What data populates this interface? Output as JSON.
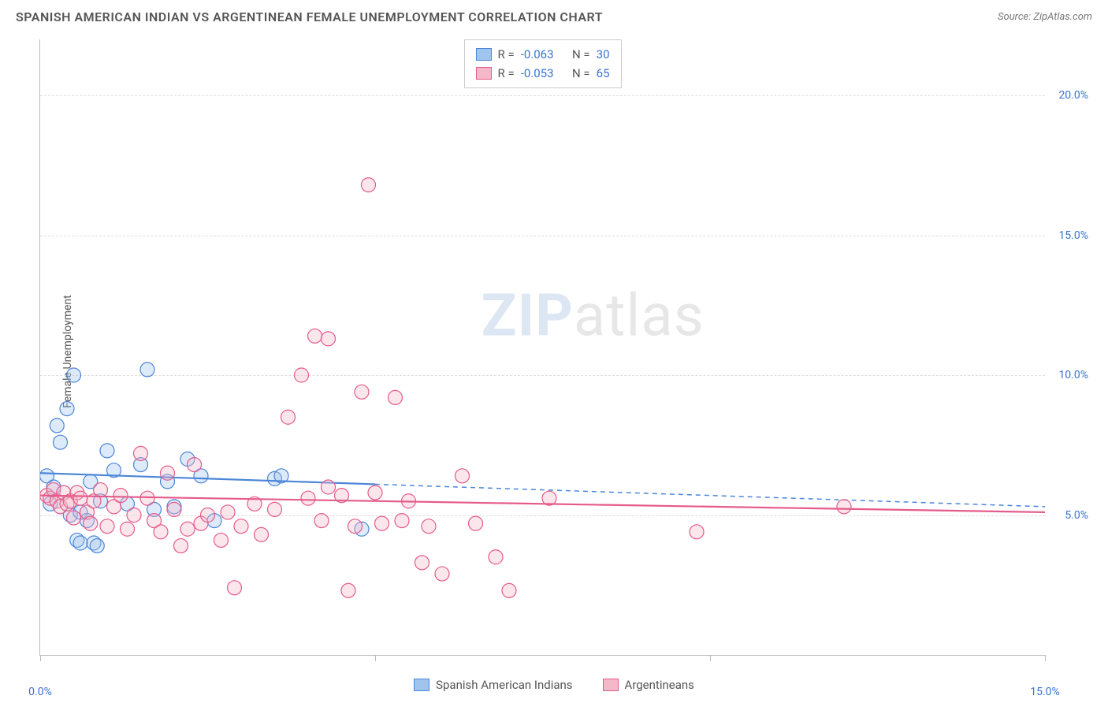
{
  "title": "SPANISH AMERICAN INDIAN VS ARGENTINEAN FEMALE UNEMPLOYMENT CORRELATION CHART",
  "source_label": "Source: ZipAtlas.com",
  "y_axis_label": "Female Unemployment",
  "watermark_a": "ZIP",
  "watermark_b": "atlas",
  "chart": {
    "type": "scatter",
    "background_color": "#ffffff",
    "grid_color": "#dddddd",
    "axis_color": "#bbbbbb",
    "tick_label_color": "#3973d4",
    "xlim": [
      0,
      15
    ],
    "ylim": [
      0,
      22
    ],
    "y_ticks": [
      {
        "v": 5,
        "label": "5.0%"
      },
      {
        "v": 10,
        "label": "10.0%"
      },
      {
        "v": 15,
        "label": "15.0%"
      },
      {
        "v": 20,
        "label": "20.0%"
      }
    ],
    "x_ticks": [
      0,
      5,
      10,
      15
    ],
    "x_tick_labels": {
      "0": "0.0%",
      "15": "15.0%"
    },
    "marker_radius": 9,
    "marker_fill_opacity": 0.35,
    "marker_stroke_width": 1.2,
    "trend_line_width": 2.2,
    "series": [
      {
        "id": "spanish_american_indians",
        "label": "Spanish American Indians",
        "fill": "#9fc4ee",
        "stroke": "#4b86d8",
        "r_value": "-0.063",
        "n_value": "30",
        "trend": {
          "x1": 0,
          "y1": 6.5,
          "x2": 5,
          "y2": 6.1,
          "dash_x2": 15,
          "dash_y2": 5.3
        },
        "points": [
          [
            0.1,
            6.4
          ],
          [
            0.15,
            5.4
          ],
          [
            0.2,
            6.0
          ],
          [
            0.25,
            8.2
          ],
          [
            0.3,
            7.6
          ],
          [
            0.4,
            8.8
          ],
          [
            0.45,
            5.0
          ],
          [
            0.5,
            10.0
          ],
          [
            0.55,
            4.1
          ],
          [
            0.6,
            4.0
          ],
          [
            0.6,
            5.1
          ],
          [
            0.7,
            4.8
          ],
          [
            0.75,
            6.2
          ],
          [
            0.8,
            4.0
          ],
          [
            0.85,
            3.9
          ],
          [
            0.9,
            5.5
          ],
          [
            1.0,
            7.3
          ],
          [
            1.1,
            6.6
          ],
          [
            1.3,
            5.4
          ],
          [
            1.5,
            6.8
          ],
          [
            1.6,
            10.2
          ],
          [
            1.7,
            5.2
          ],
          [
            1.9,
            6.2
          ],
          [
            2.0,
            5.3
          ],
          [
            2.2,
            7.0
          ],
          [
            2.4,
            6.4
          ],
          [
            2.6,
            4.8
          ],
          [
            3.5,
            6.3
          ],
          [
            3.6,
            6.4
          ],
          [
            4.8,
            4.5
          ]
        ]
      },
      {
        "id": "argentineans",
        "label": "Argentineans",
        "fill": "#f4b8c9",
        "stroke": "#e55b8b",
        "r_value": "-0.053",
        "n_value": "65",
        "trend": {
          "x1": 0,
          "y1": 5.7,
          "x2": 15,
          "y2": 5.1
        },
        "points": [
          [
            0.1,
            5.7
          ],
          [
            0.15,
            5.6
          ],
          [
            0.2,
            5.9
          ],
          [
            0.25,
            5.5
          ],
          [
            0.3,
            5.3
          ],
          [
            0.35,
            5.8
          ],
          [
            0.4,
            5.4
          ],
          [
            0.45,
            5.5
          ],
          [
            0.5,
            4.9
          ],
          [
            0.55,
            5.8
          ],
          [
            0.6,
            5.6
          ],
          [
            0.7,
            5.1
          ],
          [
            0.75,
            4.7
          ],
          [
            0.8,
            5.5
          ],
          [
            0.9,
            5.9
          ],
          [
            1.0,
            4.6
          ],
          [
            1.1,
            5.3
          ],
          [
            1.2,
            5.7
          ],
          [
            1.3,
            4.5
          ],
          [
            1.4,
            5.0
          ],
          [
            1.5,
            7.2
          ],
          [
            1.6,
            5.6
          ],
          [
            1.7,
            4.8
          ],
          [
            1.8,
            4.4
          ],
          [
            1.9,
            6.5
          ],
          [
            2.0,
            5.2
          ],
          [
            2.1,
            3.9
          ],
          [
            2.2,
            4.5
          ],
          [
            2.3,
            6.8
          ],
          [
            2.4,
            4.7
          ],
          [
            2.5,
            5.0
          ],
          [
            2.7,
            4.1
          ],
          [
            2.8,
            5.1
          ],
          [
            2.9,
            2.4
          ],
          [
            3.0,
            4.6
          ],
          [
            3.2,
            5.4
          ],
          [
            3.3,
            4.3
          ],
          [
            3.5,
            5.2
          ],
          [
            3.7,
            8.5
          ],
          [
            3.9,
            10.0
          ],
          [
            4.0,
            5.6
          ],
          [
            4.1,
            11.4
          ],
          [
            4.2,
            4.8
          ],
          [
            4.3,
            6.0
          ],
          [
            4.3,
            11.3
          ],
          [
            4.5,
            5.7
          ],
          [
            4.6,
            2.3
          ],
          [
            4.7,
            4.6
          ],
          [
            4.8,
            9.4
          ],
          [
            4.9,
            16.8
          ],
          [
            5.0,
            5.8
          ],
          [
            5.1,
            4.7
          ],
          [
            5.3,
            9.2
          ],
          [
            5.4,
            4.8
          ],
          [
            5.5,
            5.5
          ],
          [
            5.7,
            3.3
          ],
          [
            5.8,
            4.6
          ],
          [
            6.0,
            2.9
          ],
          [
            6.3,
            6.4
          ],
          [
            6.5,
            4.7
          ],
          [
            6.8,
            3.5
          ],
          [
            7.0,
            2.3
          ],
          [
            7.6,
            5.6
          ],
          [
            9.8,
            4.4
          ],
          [
            12.0,
            5.3
          ]
        ]
      }
    ]
  },
  "stats_box": {
    "r_key": "R =",
    "n_key": "N ="
  },
  "fontsize": {
    "title": 16,
    "axis_label": 14,
    "tick": 14,
    "legend": 15,
    "stats": 15,
    "watermark": 74
  }
}
